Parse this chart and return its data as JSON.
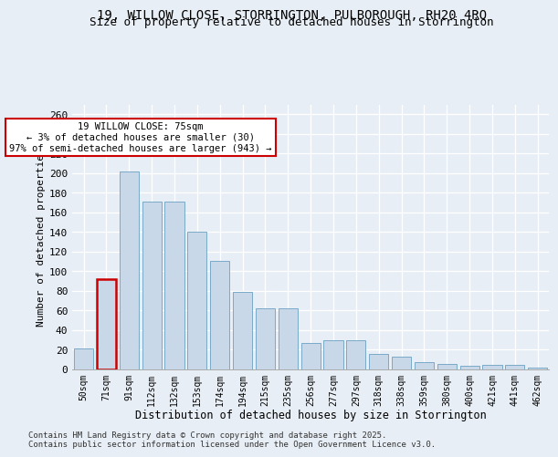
{
  "title": "19, WILLOW CLOSE, STORRINGTON, PULBOROUGH, RH20 4RQ",
  "subtitle": "Size of property relative to detached houses in Storrington",
  "xlabel": "Distribution of detached houses by size in Storrington",
  "ylabel": "Number of detached properties",
  "footnote1": "Contains HM Land Registry data © Crown copyright and database right 2025.",
  "footnote2": "Contains public sector information licensed under the Open Government Licence v3.0.",
  "annotation_title": "19 WILLOW CLOSE: 75sqm",
  "annotation_line2": "← 3% of detached houses are smaller (30)",
  "annotation_line3": "97% of semi-detached houses are larger (943) →",
  "bar_color": "#c8d8e8",
  "bar_edge_color": "#7aaac8",
  "highlight_color": "#cc0000",
  "background_color": "#e8eef5",
  "categories": [
    "50sqm",
    "71sqm",
    "91sqm",
    "112sqm",
    "132sqm",
    "153sqm",
    "174sqm",
    "194sqm",
    "215sqm",
    "235sqm",
    "256sqm",
    "277sqm",
    "297sqm",
    "318sqm",
    "338sqm",
    "359sqm",
    "380sqm",
    "400sqm",
    "421sqm",
    "441sqm",
    "462sqm"
  ],
  "values": [
    21,
    92,
    202,
    171,
    171,
    140,
    110,
    79,
    62,
    62,
    27,
    29,
    29,
    15,
    13,
    7,
    5,
    3,
    4,
    4,
    1
  ],
  "highlight_bar_index": 1,
  "ylim": [
    0,
    270
  ],
  "yticks": [
    0,
    20,
    40,
    60,
    80,
    100,
    120,
    140,
    160,
    180,
    200,
    220,
    240,
    260
  ]
}
